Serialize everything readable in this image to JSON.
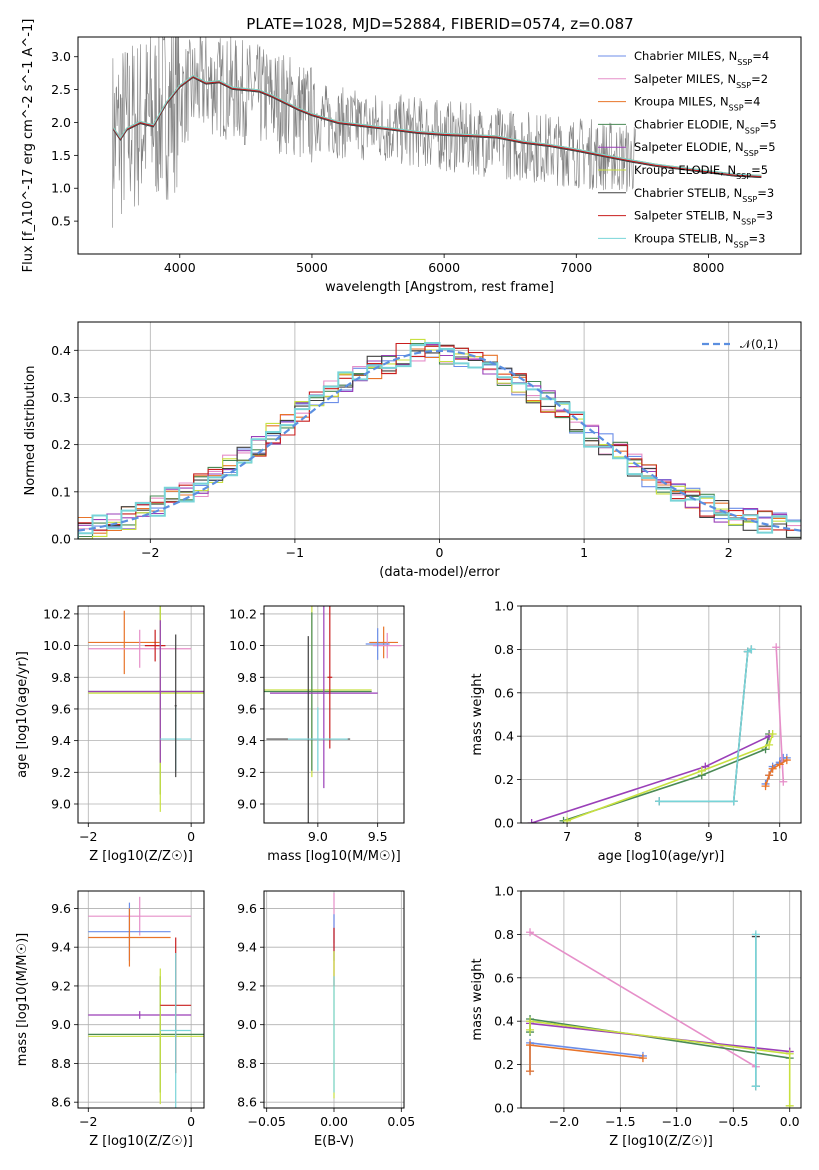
{
  "figure": {
    "title": "PLATE=1028, MJD=52884, FIBERID=0574, z=0.087"
  },
  "chart_data": [
    {
      "id": "spectrum",
      "type": "line",
      "xlabel": "wavelength [Angstrom, rest frame]",
      "ylabel": "Flux [f_λ10^-17 erg cm^-2 s^-1 A^-1]",
      "xlim": [
        3230,
        8700
      ],
      "ylim": [
        0,
        3.3
      ],
      "xticks": [
        4000,
        5000,
        6000,
        7000,
        8000
      ],
      "yticks": [
        0.5,
        1.0,
        1.5,
        2.0,
        2.5,
        3.0
      ],
      "observed": {
        "name": "data",
        "color": "#808080",
        "x": [
          3500,
          3600,
          3700,
          3800,
          3900,
          4000,
          4100,
          4200,
          4300,
          4400,
          4500,
          4600,
          4700,
          4800,
          4900,
          5000,
          5200,
          5400,
          5600,
          5800,
          6000,
          6200,
          6400,
          6600,
          6800,
          7000,
          7200,
          7400
        ],
        "y": [
          1.8,
          1.9,
          2.0,
          2.1,
          2.2,
          2.4,
          2.5,
          2.6,
          2.55,
          2.5,
          2.45,
          2.4,
          2.35,
          2.3,
          2.2,
          2.1,
          2.0,
          1.95,
          1.9,
          1.85,
          1.8,
          1.75,
          1.7,
          1.65,
          1.6,
          1.55,
          1.5,
          1.45
        ]
      },
      "model_curve": {
        "x": [
          3500,
          3550,
          3600,
          3700,
          3800,
          3900,
          4000,
          4100,
          4200,
          4300,
          4400,
          4500,
          4600,
          4700,
          4800,
          4900,
          5000,
          5200,
          5400,
          5600,
          5800,
          6000,
          6200,
          6400,
          6600,
          6800,
          7000,
          7200,
          7400,
          7600,
          7800,
          8000,
          8200,
          8400
        ],
        "y": [
          1.9,
          1.75,
          1.9,
          2.0,
          1.95,
          2.3,
          2.55,
          2.7,
          2.6,
          2.62,
          2.52,
          2.5,
          2.48,
          2.4,
          2.3,
          2.2,
          2.12,
          2.0,
          1.95,
          1.9,
          1.85,
          1.82,
          1.8,
          1.78,
          1.7,
          1.65,
          1.58,
          1.5,
          1.42,
          1.35,
          1.3,
          1.25,
          1.2,
          1.18
        ]
      },
      "series": [
        {
          "name": "Chabrier MILES, N_SSP=4",
          "label_main": "Chabrier MILES, N",
          "label_sub": "SSP",
          "label_tail": "=4",
          "color": "#6c8ee8"
        },
        {
          "name": "Salpeter MILES, N_SSP=2",
          "label_main": "Salpeter MILES, N",
          "label_sub": "SSP",
          "label_tail": "=2",
          "color": "#e68fc9"
        },
        {
          "name": "Kroupa MILES, N_SSP=4",
          "label_main": "Kroupa MILES, N",
          "label_sub": "SSP",
          "label_tail": "=4",
          "color": "#e8742a"
        },
        {
          "name": "Chabrier ELODIE, N_SSP=5",
          "label_main": "Chabrier ELODIE, N",
          "label_sub": "SSP",
          "label_tail": "=5",
          "color": "#4a8a55"
        },
        {
          "name": "Salpeter ELODIE, N_SSP=5",
          "label_main": "Salpeter ELODIE, N",
          "label_sub": "SSP",
          "label_tail": "=5",
          "color": "#9a3fb8"
        },
        {
          "name": "Kroupa ELODIE, N_SSP=5",
          "label_main": "Kroupa ELODIE, N",
          "label_sub": "SSP",
          "label_tail": "=5",
          "color": "#c8e040"
        },
        {
          "name": "Chabrier STELIB, N_SSP=3",
          "label_main": "Chabrier STELIB, N",
          "label_sub": "SSP",
          "label_tail": "=3",
          "color": "#404040"
        },
        {
          "name": "Salpeter STELIB, N_SSP=3",
          "label_main": "Salpeter STELIB, N",
          "label_sub": "SSP",
          "label_tail": "=3",
          "color": "#c81e1e"
        },
        {
          "name": "Kroupa STELIB, N_SSP=3",
          "label_main": "Kroupa STELIB, N",
          "label_sub": "SSP",
          "label_tail": "=3",
          "color": "#78d4d8"
        }
      ]
    },
    {
      "id": "residuals",
      "type": "histogram",
      "xlabel": "(data-model)/error",
      "ylabel": "Normed distribution",
      "xlim": [
        -2.5,
        2.5
      ],
      "ylim": [
        0,
        0.46
      ],
      "xticks": [
        -2,
        -1,
        0,
        1,
        2
      ],
      "yticks": [
        0.0,
        0.1,
        0.2,
        0.3,
        0.4
      ],
      "bin_edges": [
        -2.5,
        -2.4,
        -2.3,
        -2.2,
        -2.1,
        -2.0,
        -1.9,
        -1.8,
        -1.7,
        -1.6,
        -1.5,
        -1.4,
        -1.3,
        -1.2,
        -1.1,
        -1.0,
        -0.9,
        -0.8,
        -0.7,
        -0.6,
        -0.5,
        -0.4,
        -0.3,
        -0.2,
        -0.1,
        0.0,
        0.1,
        0.2,
        0.3,
        0.4,
        0.5,
        0.6,
        0.7,
        0.8,
        0.9,
        1.0,
        1.1,
        1.2,
        1.3,
        1.4,
        1.5,
        1.6,
        1.7,
        1.8,
        1.9,
        2.0,
        2.1,
        2.2,
        2.3,
        2.4,
        2.5
      ],
      "reference": {
        "values": [
          0.025,
          0.03,
          0.035,
          0.045,
          0.055,
          0.07,
          0.085,
          0.1,
          0.115,
          0.135,
          0.155,
          0.18,
          0.2,
          0.225,
          0.245,
          0.27,
          0.29,
          0.31,
          0.33,
          0.35,
          0.365,
          0.375,
          0.39,
          0.4,
          0.395,
          0.395,
          0.39,
          0.38,
          0.365,
          0.35,
          0.33,
          0.31,
          0.29,
          0.27,
          0.245,
          0.22,
          0.2,
          0.18,
          0.155,
          0.135,
          0.115,
          0.1,
          0.085,
          0.07,
          0.06,
          0.05,
          0.04,
          0.035,
          0.03,
          0.025
        ]
      },
      "gaussian": {
        "label": "𝒩(0,1)",
        "color": "#5b8fe0"
      }
    },
    {
      "id": "age_vs_Z",
      "type": "errorbar",
      "xlabel": "Z [log10(Z/Z☉)]",
      "ylabel": "age [log10(age/yr)]",
      "xlim": [
        -2.2,
        0.25
      ],
      "ylim": [
        8.88,
        10.25
      ],
      "xticks": [
        -2,
        0
      ],
      "yticks": [
        9.0,
        9.2,
        9.4,
        9.6,
        9.8,
        10.0,
        10.2
      ],
      "points": [
        {
          "x": -1.3,
          "y": 10.02,
          "xerr": 0.7,
          "yerr": 0.2,
          "series": 2
        },
        {
          "x": -1.0,
          "y": 9.98,
          "xerr": 1.0,
          "yerr": 0.12,
          "series": 1
        },
        {
          "x": -0.7,
          "y": 10.0,
          "xerr": 0.2,
          "yerr": 0.1,
          "series": 7
        },
        {
          "x": -0.6,
          "y": 9.71,
          "xerr": 1.4,
          "yerr": 0.65,
          "series": 3
        },
        {
          "x": -0.6,
          "y": 9.7,
          "xerr": 1.4,
          "yerr": 0.75,
          "series": 5
        },
        {
          "x": -0.6,
          "y": 9.71,
          "xerr": 1.4,
          "yerr": 0.45,
          "series": 4
        },
        {
          "x": -0.3,
          "y": 9.41,
          "xerr": 0.3,
          "yerr": 0.2,
          "series": 8
        },
        {
          "x": -0.3,
          "y": 9.62,
          "xerr": 0.02,
          "yerr": 0.45,
          "series": 6
        }
      ]
    },
    {
      "id": "age_vs_mass",
      "type": "errorbar",
      "xlabel": "mass [log10(M/M☉)]",
      "ylabel": "",
      "xlim": [
        8.55,
        9.72
      ],
      "ylim": [
        8.88,
        10.25
      ],
      "xticks": [
        9.0,
        9.5
      ],
      "yticks": [
        9.0,
        9.2,
        9.4,
        9.6,
        9.8,
        10.0,
        10.2
      ],
      "points": [
        {
          "x": 9.55,
          "y": 10.02,
          "xerr": 0.12,
          "yerr": 0.1,
          "series": 2
        },
        {
          "x": 9.58,
          "y": 10.0,
          "xerr": 0.12,
          "yerr": 0.08,
          "series": 1
        },
        {
          "x": 9.5,
          "y": 10.01,
          "xerr": 0.1,
          "yerr": 0.1,
          "series": 0
        },
        {
          "x": 8.95,
          "y": 9.72,
          "xerr": 0.5,
          "yerr": 0.55,
          "series": 5
        },
        {
          "x": 8.95,
          "y": 9.71,
          "xerr": 0.5,
          "yerr": 0.5,
          "series": 3
        },
        {
          "x": 9.05,
          "y": 9.7,
          "xerr": 0.45,
          "yerr": 0.6,
          "series": 4
        },
        {
          "x": 9.1,
          "y": 9.8,
          "xerr": 0.02,
          "yerr": 0.45,
          "series": 7
        },
        {
          "x": 8.92,
          "y": 9.41,
          "xerr": 0.35,
          "yerr": 0.65,
          "series": 6
        },
        {
          "x": 9.0,
          "y": 9.41,
          "xerr": 0.25,
          "yerr": 0.2,
          "series": 8
        }
      ]
    },
    {
      "id": "weight_vs_age",
      "type": "line",
      "xlabel": "age [log10(age/yr)]",
      "ylabel": "mass weight",
      "xlim": [
        6.35,
        10.3
      ],
      "ylim": [
        0,
        1
      ],
      "xticks": [
        7,
        8,
        9,
        10
      ],
      "yticks": [
        0.0,
        0.2,
        0.4,
        0.6,
        0.8,
        1.0
      ],
      "series": [
        {
          "series": 0,
          "x": [
            9.8,
            9.85,
            9.9,
            10.0,
            10.05,
            10.1
          ],
          "y": [
            0.18,
            0.22,
            0.26,
            0.28,
            0.3,
            0.3
          ]
        },
        {
          "series": 1,
          "x": [
            9.95,
            10.05
          ],
          "y": [
            0.81,
            0.19
          ]
        },
        {
          "series": 2,
          "x": [
            9.8,
            9.85,
            9.9,
            10.0,
            10.1
          ],
          "y": [
            0.17,
            0.22,
            0.25,
            0.27,
            0.29
          ]
        },
        {
          "series": 3,
          "x": [
            6.95,
            8.9,
            9.8,
            9.85
          ],
          "y": [
            0.01,
            0.22,
            0.34,
            0.41
          ]
        },
        {
          "series": 4,
          "x": [
            6.5,
            8.95,
            9.85
          ],
          "y": [
            0.0,
            0.26,
            0.4
          ]
        },
        {
          "series": 5,
          "x": [
            7.0,
            8.9,
            9.85,
            9.9
          ],
          "y": [
            0.01,
            0.24,
            0.36,
            0.41
          ]
        },
        {
          "series": 6,
          "x": [
            8.3,
            9.35,
            9.55,
            9.6
          ],
          "y": [
            0.1,
            0.1,
            0.79,
            0.8
          ]
        },
        {
          "series": 8,
          "x": [
            8.3,
            9.35,
            9.55,
            9.6
          ],
          "y": [
            0.1,
            0.1,
            0.79,
            0.8
          ]
        }
      ]
    },
    {
      "id": "mass_vs_Z",
      "type": "errorbar",
      "xlabel": "Z [log10(Z/Z☉)]",
      "ylabel": "mass [log10(M/M☉)]",
      "xlim": [
        -2.2,
        0.25
      ],
      "ylim": [
        8.57,
        9.69
      ],
      "xticks": [
        -2,
        0
      ],
      "yticks": [
        8.6,
        8.8,
        9.0,
        9.2,
        9.4,
        9.6
      ],
      "points": [
        {
          "x": -1.0,
          "y": 9.56,
          "xerr": 1.0,
          "yerr": 0.1,
          "series": 1
        },
        {
          "x": -1.2,
          "y": 9.48,
          "xerr": 0.8,
          "yerr": 0.15,
          "series": 0
        },
        {
          "x": -1.2,
          "y": 9.45,
          "xerr": 0.8,
          "yerr": 0.15,
          "series": 2
        },
        {
          "x": -1.0,
          "y": 9.05,
          "xerr": 1.0,
          "yerr": 0.02,
          "series": 4
        },
        {
          "x": -0.6,
          "y": 8.95,
          "xerr": 1.4,
          "yerr": 0.3,
          "series": 3
        },
        {
          "x": -0.6,
          "y": 8.94,
          "xerr": 1.4,
          "yerr": 0.35,
          "series": 5
        },
        {
          "x": -0.3,
          "y": 9.1,
          "xerr": 0.3,
          "yerr": 0.35,
          "series": 7
        },
        {
          "x": -0.3,
          "y": 8.97,
          "xerr": 0.3,
          "yerr": 0.4,
          "series": 8
        }
      ]
    },
    {
      "id": "mass_vs_EBV",
      "type": "errorbar",
      "xlabel": "E(B-V)",
      "ylabel": "",
      "xlim": [
        -0.052,
        0.052
      ],
      "ylim": [
        8.57,
        9.69
      ],
      "xticks": [
        -0.05,
        0.0,
        0.05
      ],
      "xticklabels": [
        "−0.05",
        "0.00",
        "0.05"
      ],
      "yticks": [
        8.6,
        8.8,
        9.0,
        9.2,
        9.4,
        9.6
      ],
      "points": [
        {
          "x": 0.0,
          "y": 9.55,
          "xerr": 0.0,
          "yerr": 0.13,
          "series": 1
        },
        {
          "x": 0.0,
          "y": 9.45,
          "xerr": 0.0,
          "yerr": 0.12,
          "series": 0
        },
        {
          "x": 0.0,
          "y": 9.35,
          "xerr": 0.0,
          "yerr": 0.15,
          "series": 7
        },
        {
          "x": 0.0,
          "y": 9.0,
          "xerr": 0.0,
          "yerr": 0.38,
          "series": 5
        },
        {
          "x": 0.0,
          "y": 8.95,
          "xerr": 0.0,
          "yerr": 0.3,
          "series": 8
        }
      ]
    },
    {
      "id": "weight_vs_Z",
      "type": "line",
      "xlabel": "Z [log10(Z/Z☉)]",
      "ylabel": "mass weight",
      "xlim": [
        -2.38,
        0.1
      ],
      "ylim": [
        0,
        1
      ],
      "xticks": [
        -2.0,
        -1.5,
        -1.0,
        -0.5,
        0.0
      ],
      "xticklabels": [
        "−2.0",
        "−1.5",
        "−1.0",
        "−0.5",
        "0.0"
      ],
      "yticks": [
        0.0,
        0.2,
        0.4,
        0.6,
        0.8,
        1.0
      ],
      "series": [
        {
          "series": 1,
          "x": [
            -2.3,
            -0.3
          ],
          "y": [
            0.81,
            0.19
          ]
        },
        {
          "series": 0,
          "x": [
            -2.3,
            -2.3,
            -1.3
          ],
          "y": [
            0.17,
            0.3,
            0.24
          ]
        },
        {
          "series": 2,
          "x": [
            -2.3,
            -2.3,
            -1.3
          ],
          "y": [
            0.17,
            0.29,
            0.23
          ]
        },
        {
          "series": 3,
          "x": [
            -2.3,
            -2.3,
            0.0
          ],
          "y": [
            0.35,
            0.41,
            0.23
          ]
        },
        {
          "series": 4,
          "x": [
            -2.3,
            0.0
          ],
          "y": [
            0.39,
            0.26
          ]
        },
        {
          "series": 5,
          "x": [
            -2.3,
            -2.3,
            0.0,
            0.0
          ],
          "y": [
            0.36,
            0.4,
            0.25,
            0.01
          ]
        },
        {
          "series": 6,
          "x": [
            -0.3,
            -0.3
          ],
          "y": [
            0.1,
            0.79
          ]
        },
        {
          "series": 8,
          "x": [
            -0.3,
            -0.3
          ],
          "y": [
            0.1,
            0.8
          ]
        }
      ]
    }
  ]
}
